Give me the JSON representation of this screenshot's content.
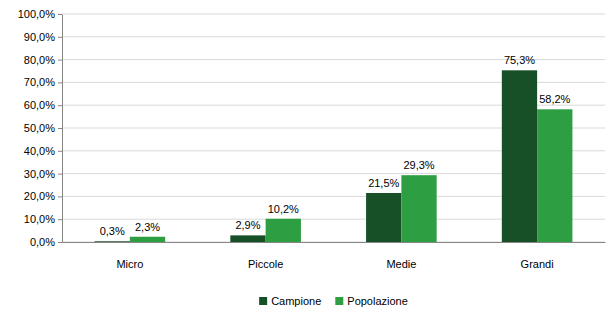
{
  "chart_data": {
    "type": "bar",
    "categories": [
      "Micro",
      "Piccole",
      "Medie",
      "Grandi"
    ],
    "series": [
      {
        "name": "Campione",
        "color": "#174f26",
        "values": [
          0.3,
          2.9,
          21.5,
          75.3
        ],
        "value_labels": [
          "0,3%",
          "2,9%",
          "21,5%",
          "75,3%"
        ]
      },
      {
        "name": "Popolazione",
        "color": "#2e9e42",
        "values": [
          2.3,
          10.2,
          29.3,
          58.2
        ],
        "value_labels": [
          "2,3%",
          "10,2%",
          "29,3%",
          "58,2%"
        ]
      }
    ],
    "ylim": [
      0,
      100
    ],
    "yticks": [
      {
        "value": 0,
        "label": "0,0%"
      },
      {
        "value": 10,
        "label": "10,0%"
      },
      {
        "value": 20,
        "label": "20,0%"
      },
      {
        "value": 30,
        "label": "30,0%"
      },
      {
        "value": 40,
        "label": "40,0%"
      },
      {
        "value": 50,
        "label": "50,0%"
      },
      {
        "value": 60,
        "label": "60,0%"
      },
      {
        "value": 70,
        "label": "70,0%"
      },
      {
        "value": 80,
        "label": "80,0%"
      },
      {
        "value": 90,
        "label": "90,0%"
      },
      {
        "value": 100,
        "label": "100,0%"
      }
    ],
    "grid": true,
    "legend": "bottom",
    "data_labels": true
  }
}
